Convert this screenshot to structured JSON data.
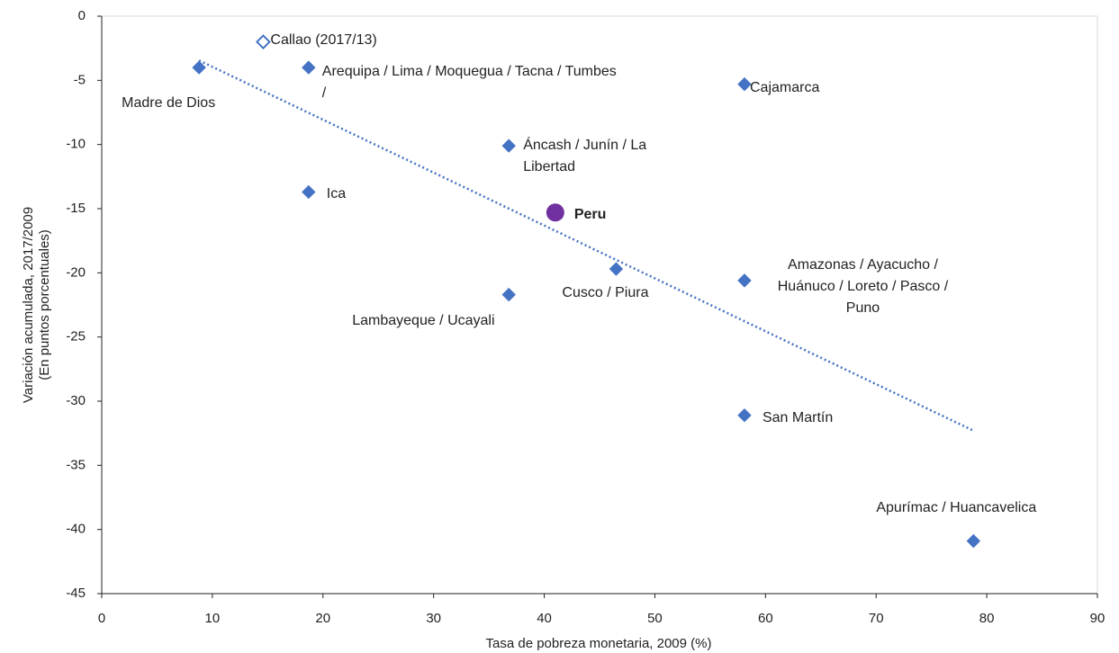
{
  "chart_data": {
    "type": "scatter",
    "xlabel": "Tasa de pobreza monetaria, 2009 (%)",
    "ylabel": [
      "Variación acumulada, 2017/2009",
      "(En puntos porcentuales)"
    ],
    "xlim": [
      0,
      90
    ],
    "xticks": [
      0,
      10,
      20,
      30,
      40,
      50,
      60,
      70,
      80,
      90
    ],
    "ylim": [
      -45,
      0
    ],
    "yticks": [
      0,
      -5,
      -10,
      -15,
      -20,
      -25,
      -30,
      -35,
      -40,
      -45
    ],
    "grid": false,
    "trendline": true,
    "trend_color": "#4472c4",
    "series": [
      {
        "marker": "diamond",
        "color": "#4472c4",
        "x": [
          8.8,
          18.7,
          58.1,
          36.8,
          18.7,
          46.5,
          36.8,
          58.1,
          58.1,
          78.8
        ],
        "values": [
          -4.0,
          -4.0,
          -5.3,
          -10.1,
          -13.7,
          -19.7,
          -21.7,
          -20.6,
          -31.1,
          -40.9
        ],
        "labels": [
          "Madre de Dios",
          "Arequipa / Lima / Moquegua / Tacna / Tumbes /",
          "Cajamarca",
          "Áncash / Junín / La Libertad",
          "Ica",
          "Cusco / Piura",
          "Lambayeque / Ucayali",
          "Amazonas / Ayacucho / Huánuco / Loreto / Pasco / Puno",
          "San Martín",
          "Apurímac / Huancavelica"
        ]
      },
      {
        "marker": "diamond-open",
        "color": "#4472c4",
        "x": [
          14.6
        ],
        "values": [
          -2.0
        ],
        "labels": [
          "Callao (2017/13)"
        ]
      },
      {
        "marker": "circle",
        "color": "#7030a0",
        "x": [
          41.0
        ],
        "values": [
          -15.3
        ],
        "labels": [
          "Peru"
        ]
      }
    ]
  }
}
